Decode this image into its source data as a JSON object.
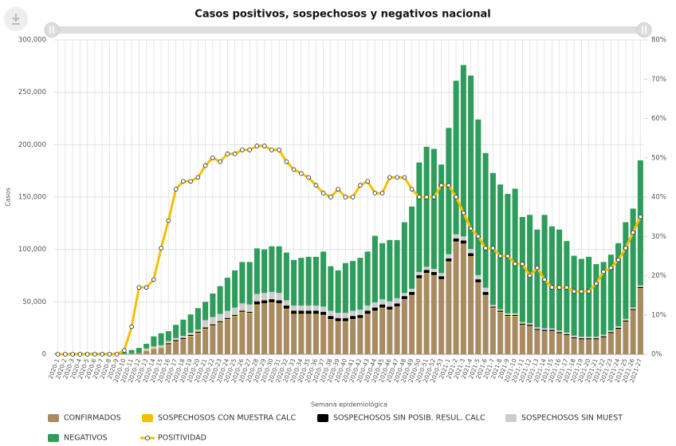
{
  "chart_data": {
    "type": "bar",
    "stacked": true,
    "title": "Casos positivos, sospechosos y negativos nacional",
    "xlabel": "Semana epidemiológica",
    "ylabel": "Casos",
    "categories": [
      "2020-1",
      "2020-2",
      "2020-3",
      "2020-4",
      "2020-5",
      "2020-6",
      "2020-7",
      "2020-8",
      "2020-9",
      "2020-10",
      "2020-11",
      "2020-12",
      "2020-13",
      "2020-14",
      "2020-15",
      "2020-16",
      "2020-17",
      "2020-18",
      "2020-19",
      "2020-20",
      "2020-21",
      "2020-22",
      "2020-23",
      "2020-24",
      "2020-25",
      "2020-26",
      "2020-27",
      "2020-28",
      "2020-29",
      "2020-30",
      "2020-31",
      "2020-32",
      "2020-33",
      "2020-34",
      "2020-35",
      "2020-36",
      "2020-37",
      "2020-38",
      "2020-39",
      "2020-40",
      "2020-41",
      "2020-42",
      "2020-43",
      "2020-44",
      "2020-45",
      "2020-46",
      "2020-47",
      "2020-48",
      "2020-49",
      "2020-50",
      "2020-51",
      "2020-52",
      "2020-53",
      "2021-1",
      "2021-2",
      "2021-3",
      "2021-4",
      "2021-5",
      "2021-6",
      "2021-7",
      "2021-8",
      "2021-9",
      "2021-10",
      "2021-11",
      "2021-12",
      "2021-13",
      "2021-14",
      "2021-15",
      "2021-16",
      "2021-17",
      "2021-18",
      "2021-19",
      "2021-20",
      "2021-21",
      "2021-22",
      "2021-23",
      "2021-24",
      "2021-25",
      "2021-26",
      "2021-27"
    ],
    "series": [
      {
        "name": "CONFIRMADOS",
        "color": "#a98b61",
        "values": [
          0,
          0,
          0,
          0,
          0,
          0,
          0,
          0,
          100,
          500,
          1000,
          1500,
          3000,
          5000,
          6000,
          9000,
          12000,
          14000,
          17000,
          20000,
          24000,
          27000,
          30000,
          33000,
          36000,
          40000,
          39000,
          47000,
          48000,
          49000,
          48000,
          43000,
          38000,
          38000,
          38000,
          38000,
          37000,
          33000,
          31000,
          31000,
          33000,
          34000,
          38000,
          41000,
          44000,
          42000,
          45000,
          52000,
          56000,
          72000,
          77000,
          75000,
          71000,
          88000,
          107000,
          105000,
          93000,
          68000,
          56000,
          44000,
          40000,
          36000,
          36000,
          28000,
          27000,
          23000,
          22000,
          22000,
          20000,
          18000,
          15000,
          14000,
          14000,
          14000,
          16000,
          20000,
          24000,
          31000,
          42000,
          63000
        ]
      },
      {
        "name": "SOSPECHOSOS CON MUESTRA CALC",
        "color": "#f5c000",
        "values": [
          0,
          0,
          0,
          0,
          0,
          0,
          0,
          0,
          0,
          0,
          0,
          0,
          500,
          500,
          500,
          500,
          500,
          500,
          500,
          500,
          500,
          500,
          500,
          500,
          500,
          500,
          500,
          500,
          500,
          500,
          500,
          500,
          500,
          500,
          500,
          500,
          500,
          500,
          500,
          500,
          500,
          500,
          500,
          500,
          500,
          500,
          500,
          500,
          500,
          500,
          500,
          500,
          500,
          500,
          500,
          500,
          500,
          500,
          500,
          500,
          500,
          500,
          500,
          200,
          200,
          200,
          200,
          200,
          200,
          200,
          200,
          200,
          200,
          200,
          200,
          200,
          200,
          200,
          200,
          200
        ]
      },
      {
        "name": "SOSPECHOSOS SIN POSIB. RESUL. CALC",
        "color": "#000000",
        "values": [
          0,
          0,
          0,
          0,
          0,
          0,
          0,
          0,
          0,
          0,
          0,
          0,
          0,
          0,
          0,
          1000,
          1000,
          1000,
          1000,
          1000,
          1000,
          1000,
          1000,
          1000,
          1000,
          1000,
          1000,
          3000,
          3000,
          3000,
          3000,
          3000,
          3000,
          3000,
          3000,
          3000,
          3000,
          3000,
          3000,
          3000,
          3000,
          3000,
          3000,
          3000,
          3000,
          3000,
          3000,
          3000,
          3000,
          3000,
          3000,
          3000,
          3000,
          3000,
          3000,
          3000,
          3000,
          3000,
          3000,
          1000,
          1000,
          1000,
          1000,
          1000,
          1000,
          1000,
          1000,
          1000,
          1000,
          1000,
          1000,
          1000,
          1000,
          1000,
          1000,
          1000,
          1000,
          1000,
          1000,
          1000
        ]
      },
      {
        "name": "SOSPECHOSOS SIN MUEST",
        "color": "#cccccc",
        "values": [
          0,
          0,
          0,
          0,
          0,
          0,
          0,
          0,
          0,
          0,
          0,
          0,
          2000,
          2000,
          2000,
          2000,
          2000,
          2000,
          2000,
          2000,
          7000,
          7000,
          7000,
          7000,
          7000,
          7000,
          7000,
          7000,
          7000,
          7000,
          7000,
          5000,
          5000,
          5000,
          5000,
          5000,
          5000,
          5000,
          5000,
          5000,
          5000,
          5000,
          5000,
          5000,
          5000,
          5000,
          5000,
          3000,
          3000,
          3000,
          3000,
          3000,
          3000,
          4000,
          4000,
          4000,
          4000,
          4000,
          4000,
          1500,
          1500,
          1500,
          1500,
          1500,
          1500,
          1500,
          1500,
          1500,
          1500,
          1500,
          1500,
          1500,
          1500,
          1500,
          1500,
          1500,
          1500,
          1500,
          1500,
          1500
        ]
      },
      {
        "name": "NEGATIVOS",
        "color": "#2e9c5b",
        "values": [
          1000,
          1000,
          1500,
          1500,
          1500,
          1500,
          1500,
          1500,
          1400,
          1500,
          3000,
          4500,
          4500,
          9500,
          11500,
          9500,
          12500,
          15500,
          17500,
          20500,
          17500,
          22500,
          26500,
          31500,
          35500,
          39500,
          40500,
          43500,
          41500,
          43500,
          44500,
          45500,
          43500,
          45500,
          46500,
          46500,
          52500,
          42500,
          40500,
          47500,
          47500,
          49500,
          51500,
          63500,
          53500,
          58500,
          55500,
          67500,
          78500,
          104500,
          114500,
          114500,
          103500,
          120500,
          146500,
          163500,
          165500,
          148500,
          128500,
          126000,
          119000,
          114000,
          119000,
          100300,
          103300,
          93300,
          108300,
          97300,
          96300,
          87300,
          76300,
          74300,
          76300,
          69300,
          69300,
          72300,
          79300,
          92300,
          94300,
          119300
        ]
      },
      {
        "name": "POSITIVIDAD",
        "type": "line",
        "axis": "y2",
        "color": "#f5c000",
        "values": [
          0,
          0,
          0,
          0,
          0,
          0,
          0,
          0,
          0,
          1,
          7,
          17,
          17,
          19,
          27,
          34,
          42,
          44,
          44,
          45,
          48,
          50,
          49,
          51,
          51,
          52,
          52,
          53,
          53,
          52,
          52,
          49,
          47,
          46,
          45,
          43,
          41,
          40,
          42,
          40,
          40,
          43,
          44,
          41,
          41,
          45,
          45,
          45,
          42,
          40,
          40,
          40,
          43,
          43,
          40,
          36,
          32,
          30,
          27,
          27,
          25,
          25,
          23,
          23,
          20,
          22,
          19,
          17,
          17,
          17,
          16,
          16,
          16,
          18,
          21,
          22,
          24,
          27,
          31,
          35
        ]
      }
    ],
    "ylim": [
      0,
      300000
    ],
    "yticks": [
      0,
      {
        "value": 50000,
        "label": "50,000"
      },
      {
        "value": 100000,
        "label": "100,000"
      },
      {
        "value": 150000,
        "label": "150,000"
      },
      {
        "value": 200000,
        "label": "200,000"
      },
      {
        "value": 250000,
        "label": "250,000"
      },
      {
        "value": 300000,
        "label": "300,000"
      }
    ],
    "y2lim": [
      0,
      80
    ],
    "y2ticks": [
      {
        "value": 0,
        "label": "0%"
      },
      {
        "value": 10,
        "label": "10%"
      },
      {
        "value": 20,
        "label": "20%"
      },
      {
        "value": 30,
        "label": "30%"
      },
      {
        "value": 40,
        "label": "40%"
      },
      {
        "value": 50,
        "label": "50%"
      },
      {
        "value": 60,
        "label": "60%"
      },
      {
        "value": 70,
        "label": "70%"
      },
      {
        "value": 80,
        "label": "80%"
      }
    ],
    "grid": true,
    "legend": "bottom"
  }
}
